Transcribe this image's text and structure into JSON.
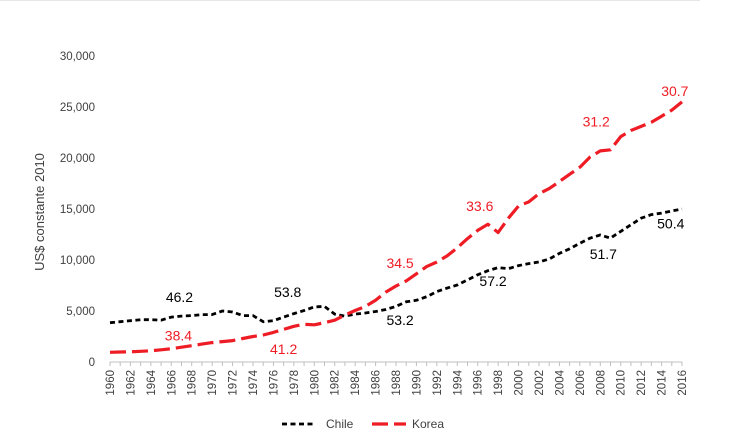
{
  "chart_data": {
    "type": "line",
    "ylabel": "US$ constante 2010",
    "ylim": [
      0,
      30000
    ],
    "yticks": [
      0,
      5000,
      10000,
      15000,
      20000,
      25000,
      30000
    ],
    "ytick_labels": [
      "0",
      "5,000",
      "10,000",
      "15,000",
      "20,000",
      "25,000",
      "30,000"
    ],
    "x_start": 1960,
    "x_end": 2016,
    "xtick_labels": [
      "1960",
      "1962",
      "1964",
      "1966",
      "1968",
      "1970",
      "1972",
      "1974",
      "1976",
      "1978",
      "1980",
      "1982",
      "1984",
      "1986",
      "1988",
      "1990",
      "1992",
      "1994",
      "1996",
      "1998",
      "2000",
      "2002",
      "2004",
      "2006",
      "2008",
      "2010",
      "2012",
      "2014",
      "2016"
    ],
    "grid": false,
    "legend_position": "bottom",
    "x": [
      1960,
      1961,
      1962,
      1963,
      1964,
      1965,
      1966,
      1967,
      1968,
      1969,
      1970,
      1971,
      1972,
      1973,
      1974,
      1975,
      1976,
      1977,
      1978,
      1979,
      1980,
      1981,
      1982,
      1983,
      1984,
      1985,
      1986,
      1987,
      1988,
      1989,
      1990,
      1991,
      1992,
      1993,
      1994,
      1995,
      1996,
      1997,
      1998,
      1999,
      2000,
      2001,
      2002,
      2003,
      2004,
      2005,
      2006,
      2007,
      2008,
      2009,
      2010,
      2011,
      2012,
      2013,
      2014,
      2015,
      2016
    ],
    "series": [
      {
        "name": "Chile",
        "color": "#000000",
        "dash": "short",
        "values": [
          3850,
          3950,
          4050,
          4150,
          4150,
          4100,
          4400,
          4500,
          4550,
          4650,
          4650,
          5000,
          4900,
          4550,
          4550,
          3950,
          4050,
          4400,
          4750,
          5050,
          5400,
          5450,
          4700,
          4500,
          4700,
          4800,
          4950,
          5150,
          5450,
          5900,
          6050,
          6400,
          6900,
          7250,
          7550,
          8050,
          8550,
          8950,
          9250,
          9150,
          9450,
          9650,
          9800,
          10100,
          10650,
          11100,
          11650,
          12150,
          12450,
          12150,
          12800,
          13450,
          14100,
          14450,
          14600,
          14800,
          15000
        ]
      },
      {
        "name": "Korea",
        "color": "#ee1c25",
        "dash": "long",
        "values": [
          950,
          980,
          1000,
          1050,
          1100,
          1200,
          1300,
          1450,
          1600,
          1750,
          1900,
          2000,
          2100,
          2300,
          2500,
          2650,
          2900,
          3200,
          3500,
          3700,
          3650,
          3850,
          4100,
          4600,
          5050,
          5450,
          6050,
          6850,
          7450,
          7950,
          8650,
          9350,
          9800,
          10400,
          11200,
          12100,
          12900,
          13500,
          12700,
          14100,
          15300,
          15700,
          16500,
          17000,
          17700,
          18400,
          19100,
          20100,
          20700,
          20800,
          22100,
          22700,
          23100,
          23500,
          24100,
          24700,
          25500
        ]
      }
    ],
    "annotations": [
      {
        "text": "46.2",
        "series": "Chile",
        "color": "#000000",
        "x": 1966.8,
        "y": 5900
      },
      {
        "text": "53.8",
        "series": "Chile",
        "color": "#000000",
        "x": 1977.4,
        "y": 6350
      },
      {
        "text": "53.2",
        "series": "Chile",
        "color": "#000000",
        "x": 1988.4,
        "y": 3650
      },
      {
        "text": "57.2",
        "series": "Chile",
        "color": "#000000",
        "x": 1997.5,
        "y": 7450
      },
      {
        "text": "51.7",
        "series": "Chile",
        "color": "#000000",
        "x": 2008.3,
        "y": 10100
      },
      {
        "text": "50.4",
        "series": "Chile",
        "color": "#000000",
        "x": 2014.9,
        "y": 13100
      },
      {
        "text": "38.4",
        "series": "Korea",
        "color": "#ee1c25",
        "x": 1966.7,
        "y": 2100
      },
      {
        "text": "41.2",
        "series": "Korea",
        "color": "#ee1c25",
        "x": 1977.0,
        "y": 800
      },
      {
        "text": "34.5",
        "series": "Korea",
        "color": "#ee1c25",
        "x": 1988.4,
        "y": 9200
      },
      {
        "text": "33.6",
        "series": "Korea",
        "color": "#ee1c25",
        "x": 1996.2,
        "y": 14800
      },
      {
        "text": "31.2",
        "series": "Korea",
        "color": "#ee1c25",
        "x": 2007.6,
        "y": 23100
      },
      {
        "text": "30.7",
        "series": "Korea",
        "color": "#ee1c25",
        "x": 2015.3,
        "y": 26100
      }
    ]
  }
}
